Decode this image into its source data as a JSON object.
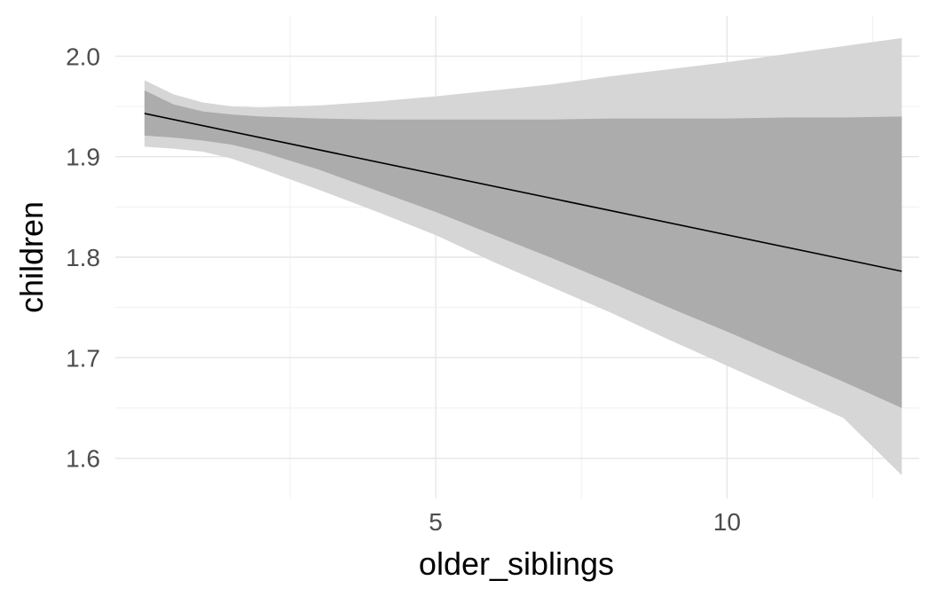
{
  "chart_data": {
    "type": "line",
    "title": "",
    "xlabel": "older_siblings",
    "ylabel": "children",
    "xlim": [
      -0.5,
      13.3
    ],
    "ylim": [
      1.56,
      2.04
    ],
    "x_major_ticks": [
      5,
      10
    ],
    "x_minor_ticks": [
      2.5,
      7.5,
      12.5
    ],
    "y_major_ticks": [
      1.6,
      1.7,
      1.8,
      1.9,
      2.0
    ],
    "y_minor_ticks": [
      1.65,
      1.75,
      1.85,
      1.95
    ],
    "x_tick_labels": [
      "5",
      "10"
    ],
    "y_tick_labels": [
      "1.6",
      "1.7",
      "1.8",
      "1.9",
      "2.0"
    ],
    "grid": true,
    "series": [
      {
        "x": [
          0,
          13
        ],
        "values": [
          1.943,
          1.786
        ]
      }
    ],
    "bands": [
      {
        "level": "outer",
        "fill": "#d6d6d6",
        "x": [
          0,
          0.5,
          1,
          1.5,
          2,
          3,
          4,
          5,
          6,
          7,
          8,
          9,
          10,
          11,
          12,
          13
        ],
        "upper": [
          1.976,
          1.962,
          1.954,
          1.95,
          1.949,
          1.951,
          1.955,
          1.96,
          1.966,
          1.972,
          1.98,
          1.987,
          1.994,
          2.002,
          2.01,
          2.018
        ],
        "lower": [
          1.91,
          1.908,
          1.905,
          1.898,
          1.888,
          1.867,
          1.845,
          1.822,
          1.795,
          1.77,
          1.745,
          1.718,
          1.692,
          1.666,
          1.64,
          1.583
        ]
      },
      {
        "level": "inner",
        "fill": "#acacac",
        "x": [
          0,
          0.5,
          1,
          1.5,
          2,
          3,
          4,
          5,
          6,
          7,
          8,
          9,
          10,
          11,
          12,
          13
        ],
        "upper": [
          1.966,
          1.952,
          1.945,
          1.942,
          1.94,
          1.938,
          1.937,
          1.937,
          1.937,
          1.937,
          1.938,
          1.938,
          1.938,
          1.939,
          1.939,
          1.94
        ],
        "lower": [
          1.921,
          1.919,
          1.916,
          1.912,
          1.905,
          1.887,
          1.866,
          1.845,
          1.822,
          1.799,
          1.775,
          1.75,
          1.726,
          1.701,
          1.676,
          1.65
        ]
      }
    ],
    "line_color": "#000000"
  }
}
